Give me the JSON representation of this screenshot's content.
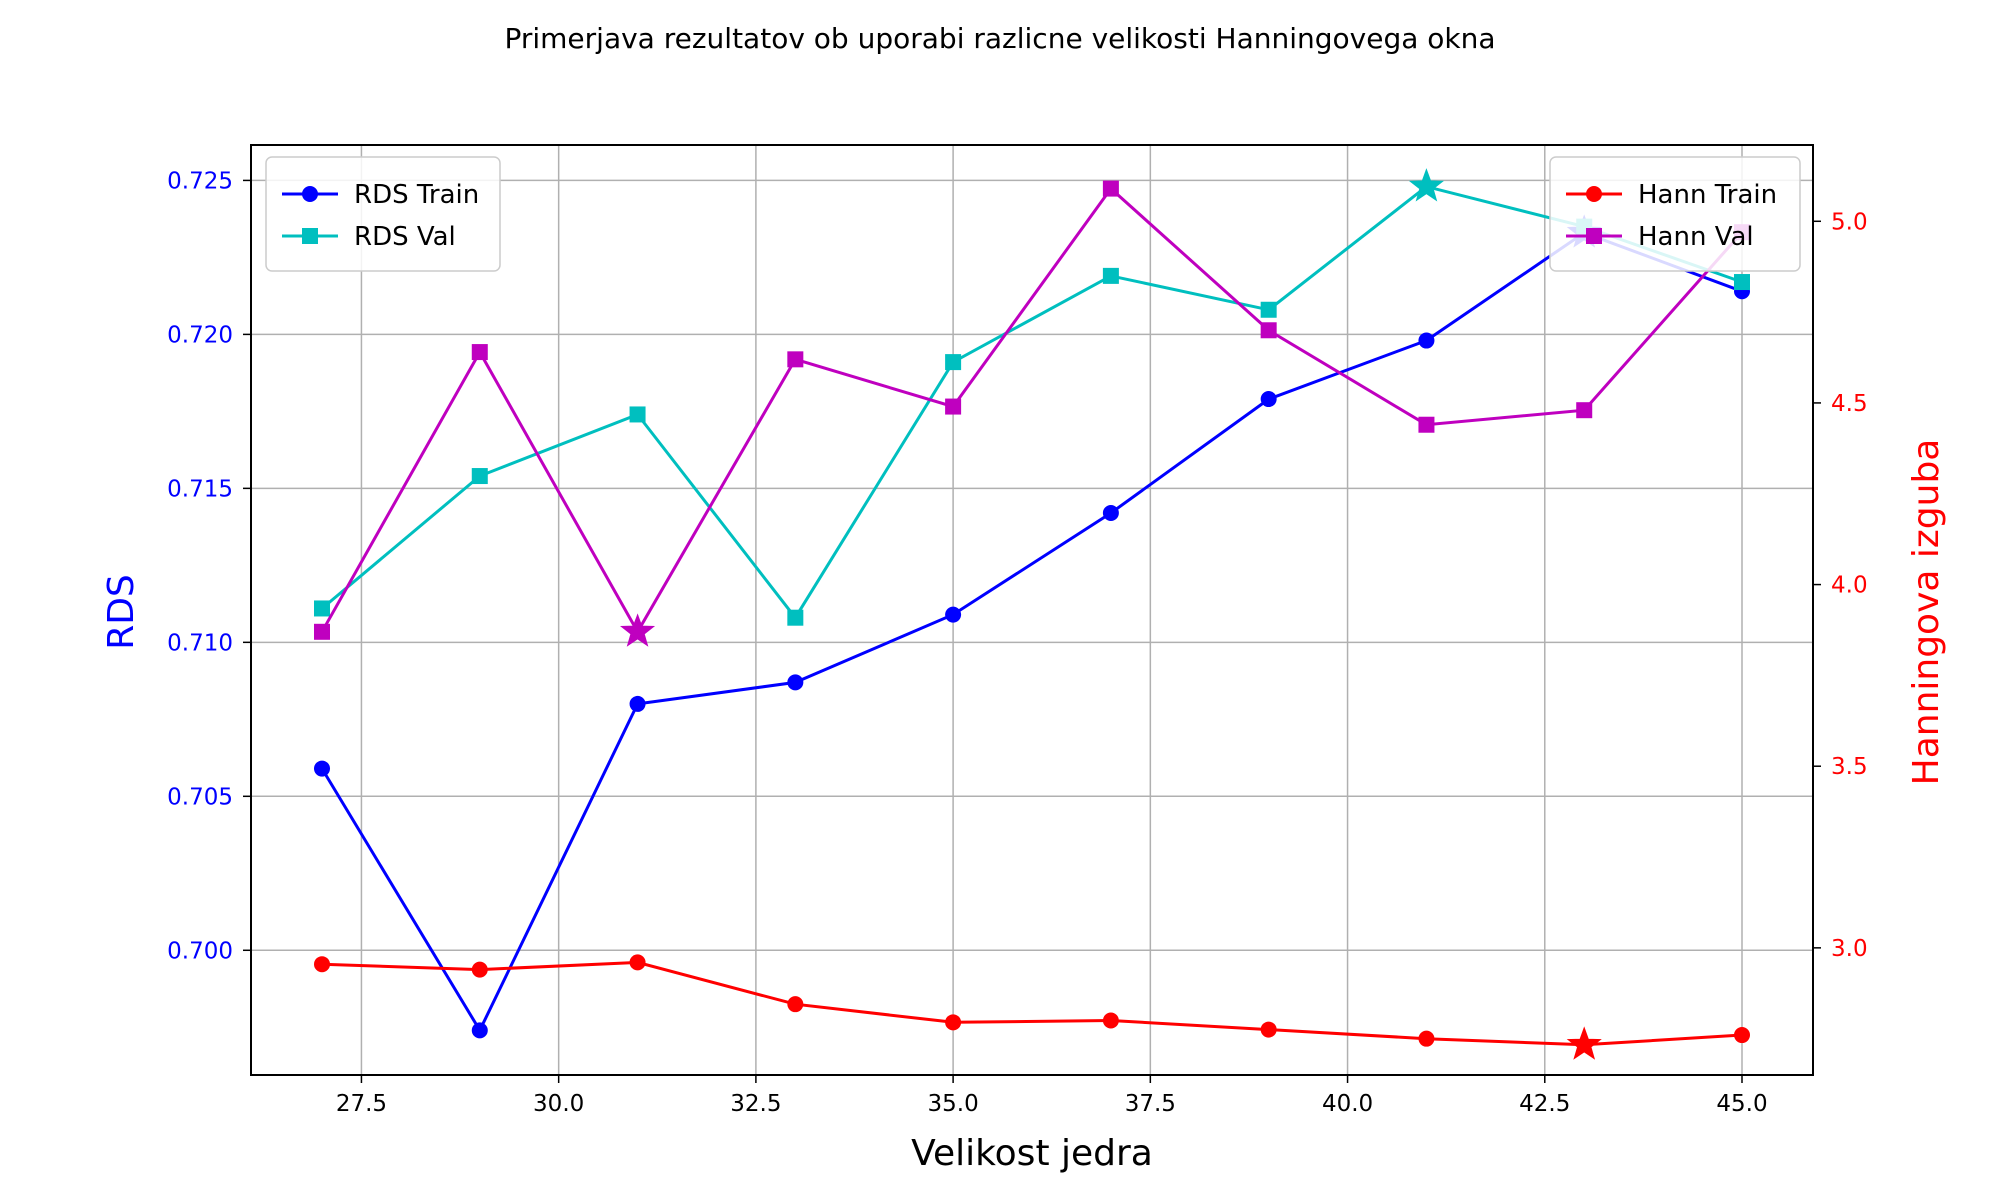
{
  "chart_data": {
    "type": "line",
    "title": "Primerjava rezultatov ob uporabi razlicne velikosti Hanningovega okna",
    "xlabel": "Velikost jedra",
    "ylabel_left": "RDS",
    "ylabel_right": "Hanningova izguba",
    "x": [
      27,
      29,
      31,
      33,
      35,
      37,
      39,
      41,
      43,
      45
    ],
    "xlim": [
      26.1,
      45.9
    ],
    "xticks": [
      27.5,
      30.0,
      32.5,
      35.0,
      37.5,
      40.0,
      42.5,
      45.0
    ],
    "xtick_labels": [
      "27.5",
      "30.0",
      "32.5",
      "35.0",
      "37.5",
      "40.0",
      "42.5",
      "45.0"
    ],
    "ylim_left": [
      0.69595,
      0.72615
    ],
    "yticks_left": [
      0.7,
      0.705,
      0.71,
      0.715,
      0.72,
      0.725
    ],
    "ytick_labels_left": [
      "0.700",
      "0.705",
      "0.710",
      "0.715",
      "0.720",
      "0.725"
    ],
    "ylim_right": [
      2.65,
      5.21
    ],
    "yticks_right": [
      3.0,
      3.5,
      4.0,
      4.5,
      5.0
    ],
    "ytick_labels_right": [
      "3.0",
      "3.5",
      "4.0",
      "4.5",
      "5.0"
    ],
    "grid": true,
    "left_axis_color": "#0000ff",
    "right_axis_color": "#ff0000",
    "legend_left_placement": "upper left",
    "legend_right_placement": "upper right",
    "series": [
      {
        "name": "RDS Train",
        "axis": "left",
        "color": "#0000ff",
        "marker": "circle",
        "values": [
          0.7059,
          0.6974,
          0.708,
          0.7087,
          0.7109,
          0.7142,
          0.7179,
          0.7198,
          0.7233,
          0.7214
        ],
        "best_index": 8
      },
      {
        "name": "RDS Val",
        "axis": "left",
        "color": "#00bfbf",
        "marker": "square",
        "values": [
          0.7111,
          0.7154,
          0.7174,
          0.7108,
          0.7191,
          0.7219,
          0.7208,
          0.7248,
          0.7235,
          0.7217
        ],
        "best_index": 7
      },
      {
        "name": "Hann Train",
        "axis": "right",
        "color": "#ff0000",
        "marker": "circle",
        "values": [
          2.955,
          2.94,
          2.96,
          2.845,
          2.795,
          2.8,
          2.775,
          2.75,
          2.733,
          2.76
        ],
        "best_index": 8
      },
      {
        "name": "Hann Val",
        "axis": "right",
        "color": "#bf00bf",
        "marker": "square",
        "values": [
          3.87,
          4.64,
          3.87,
          4.62,
          4.49,
          5.09,
          4.7,
          4.44,
          4.48,
          4.97
        ],
        "best_index": 2
      }
    ]
  }
}
